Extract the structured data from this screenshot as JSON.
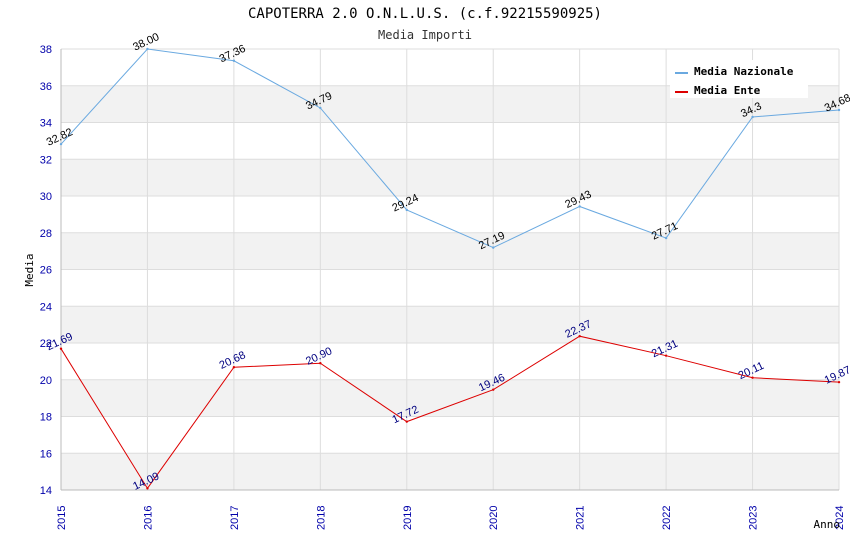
{
  "chart_data": {
    "type": "line",
    "title": "CAPOTERRA 2.0 O.N.L.U.S. (c.f.92215590925)",
    "subtitle": "Media Importi",
    "xlabel": "Anno",
    "ylabel": "Media",
    "categories": [
      "2015",
      "2016",
      "2017",
      "2018",
      "2019",
      "2020",
      "2021",
      "2022",
      "2023",
      "2024"
    ],
    "ylim": [
      14,
      38
    ],
    "yticks": [
      14,
      16,
      18,
      20,
      22,
      24,
      26,
      28,
      30,
      32,
      34,
      36,
      38
    ],
    "legend_position": "top-right",
    "series": [
      {
        "name": "Media Nazionale",
        "color": "#6aa9e0",
        "label_color": "#000000",
        "values": [
          32.82,
          38.0,
          37.36,
          34.79,
          29.24,
          27.19,
          29.43,
          27.71,
          34.3,
          34.68
        ],
        "labels": [
          "32.82",
          "38.00",
          "37.36",
          "34.79",
          "29.24",
          "27.19",
          "29.43",
          "27.71",
          "34.3",
          "34.68"
        ]
      },
      {
        "name": "Media Ente",
        "color": "#dd0000",
        "label_color": "#000080",
        "values": [
          21.69,
          14.09,
          20.68,
          20.9,
          17.72,
          19.46,
          22.37,
          21.31,
          20.11,
          19.87
        ],
        "labels": [
          "21.69",
          "14.09",
          "20.68",
          "20.90",
          "17.72",
          "19.46",
          "22.37",
          "21.31",
          "20.11",
          "19.87"
        ]
      }
    ]
  }
}
